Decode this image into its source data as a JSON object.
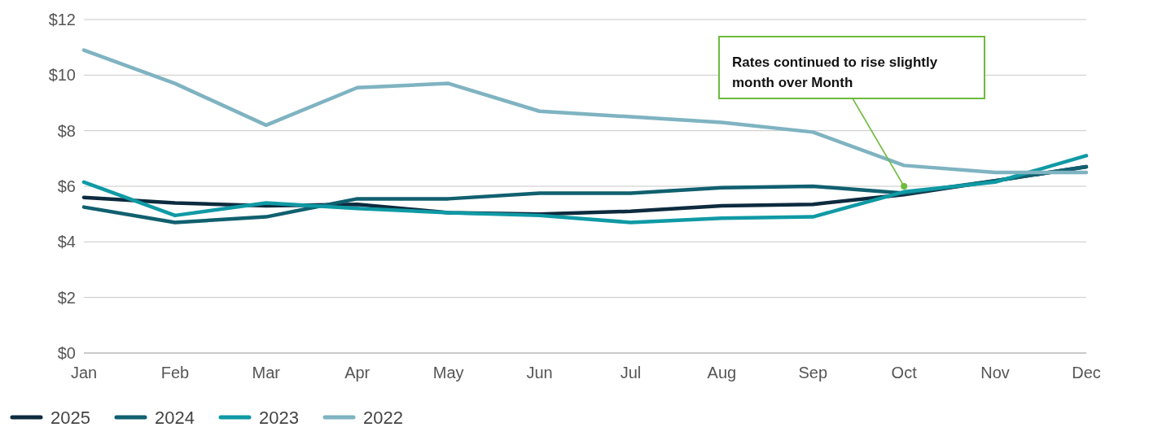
{
  "chart_data": {
    "type": "line",
    "categories": [
      "Jan",
      "Feb",
      "Mar",
      "Apr",
      "May",
      "Jun",
      "Jul",
      "Aug",
      "Sep",
      "Oct",
      "Nov",
      "Dec"
    ],
    "series": [
      {
        "name": "2025",
        "color": "#0d2b3e",
        "values": [
          5.6,
          5.4,
          5.3,
          5.35,
          5.05,
          5.0,
          5.1,
          5.3,
          5.35,
          5.7,
          6.2,
          6.7
        ]
      },
      {
        "name": "2024",
        "color": "#10606f",
        "values": [
          5.25,
          4.7,
          4.9,
          5.55,
          5.55,
          5.75,
          5.75,
          5.95,
          6.0,
          5.75,
          6.2,
          6.7
        ]
      },
      {
        "name": "2023",
        "color": "#0f9aa5",
        "values": [
          6.15,
          4.95,
          5.4,
          5.2,
          5.05,
          4.95,
          4.7,
          4.85,
          4.9,
          5.8,
          6.15,
          7.1
        ]
      },
      {
        "name": "2022",
        "color": "#7fb3c1",
        "values": [
          10.9,
          9.7,
          8.2,
          9.55,
          9.7,
          8.7,
          8.5,
          8.3,
          7.95,
          6.75,
          6.5,
          6.5
        ]
      }
    ],
    "ylim": [
      0,
      12
    ],
    "yticks": [
      {
        "value": 0,
        "label": "$0"
      },
      {
        "value": 2,
        "label": "$2"
      },
      {
        "value": 4,
        "label": "$4"
      },
      {
        "value": 6,
        "label": "$6"
      },
      {
        "value": 8,
        "label": "$8"
      },
      {
        "value": 10,
        "label": "$10"
      },
      {
        "value": 12,
        "label": "$12"
      }
    ],
    "grid": "y",
    "legend": "bottom",
    "marker": "none",
    "line_style": "solid",
    "annotations": [
      {
        "text": "Rates continued to rise slightly month over Month",
        "x": "Oct",
        "y": 6.0
      }
    ]
  }
}
